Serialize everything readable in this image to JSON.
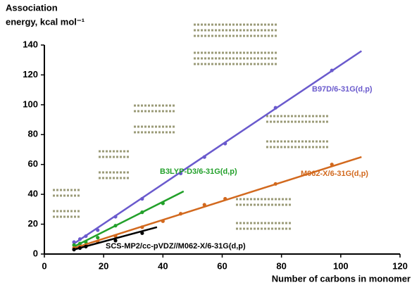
{
  "chart_data": {
    "type": "scatter",
    "y_label": [
      "Association",
      "energy, kcal mol⁻¹"
    ],
    "x_label": "Number of carbons in monomer",
    "xlim": [
      0,
      120
    ],
    "xticks": [
      0,
      20,
      40,
      60,
      80,
      100,
      120
    ],
    "ylim": [
      0,
      140
    ],
    "yticks": [
      0,
      20,
      40,
      60,
      80,
      100,
      120,
      140
    ],
    "series": [
      {
        "name": "B97D/6-31G(d,p)",
        "color": "#6a5acd",
        "x": [
          10,
          12,
          14,
          18,
          24,
          33,
          46,
          54,
          61,
          78,
          97
        ],
        "values": [
          8,
          10,
          12,
          16,
          25,
          37,
          54,
          65,
          74,
          98,
          123
        ],
        "line": {
          "x": [
            10,
            107
          ],
          "values": [
            7,
            136
          ]
        }
      },
      {
        "name": "B3LYP-D3/6-31G(d,p)",
        "color": "#22a02a",
        "x": [
          10,
          12,
          14,
          18,
          24,
          33,
          40
        ],
        "values": [
          6,
          7,
          8,
          11,
          19,
          28,
          34
        ],
        "line": {
          "x": [
            10,
            47
          ],
          "values": [
            5,
            42
          ]
        }
      },
      {
        "name": "M062-X/6-31G(d,p)",
        "color": "#d2691e",
        "x": [
          10,
          12,
          14,
          18,
          24,
          33,
          40,
          46,
          54,
          61,
          78,
          97
        ],
        "values": [
          4,
          5,
          6,
          8,
          12,
          18,
          22,
          27,
          33,
          37,
          47,
          60
        ],
        "line": {
          "x": [
            10,
            107
          ],
          "values": [
            4,
            65
          ]
        }
      },
      {
        "name": "SCS-MP2/cc-pVDZ//M062-X/6-31G(d,p)",
        "color": "#000000",
        "x": [
          10,
          12,
          14,
          24,
          33
        ],
        "values": [
          3,
          4,
          5,
          9,
          14
        ],
        "line": {
          "x": [
            10,
            38
          ],
          "values": [
            3,
            18
          ]
        }
      }
    ]
  }
}
